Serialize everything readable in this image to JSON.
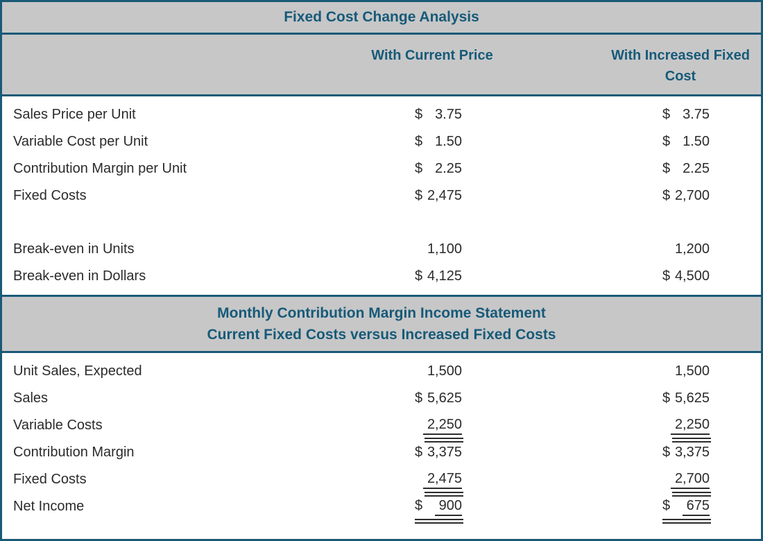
{
  "colors": {
    "accent_teal": "#175a78",
    "band_gray": "#c7c7c8",
    "body_text": "#2b2b2b",
    "background": "#ffffff"
  },
  "title": "Fixed Cost Change Analysis",
  "columns": {
    "col1": "With Current Price",
    "col2": "With Increased Fixed Cost"
  },
  "analysis": {
    "rows": [
      {
        "label": "Sales Price per Unit",
        "c1": {
          "cur": "$",
          "amt": "3.75"
        },
        "c2": {
          "cur": "$",
          "amt": "3.75"
        }
      },
      {
        "label": "Variable Cost per Unit",
        "c1": {
          "cur": "$",
          "amt": "1.50"
        },
        "c2": {
          "cur": "$",
          "amt": "1.50"
        }
      },
      {
        "label": "Contribution Margin per Unit",
        "c1": {
          "cur": "$",
          "amt": "2.25"
        },
        "c2": {
          "cur": "$",
          "amt": "2.25"
        }
      },
      {
        "label": "Fixed Costs",
        "c1": {
          "cur": "$",
          "amt": "2,475"
        },
        "c2": {
          "cur": "$",
          "amt": "2,700"
        }
      },
      {
        "label": "Break-even in Units",
        "c1": {
          "cur": "",
          "amt": "1,100"
        },
        "c2": {
          "cur": "",
          "amt": "1,200"
        }
      },
      {
        "label": "Break-even in Dollars",
        "c1": {
          "cur": "$",
          "amt": "4,125"
        },
        "c2": {
          "cur": "$",
          "amt": "4,500"
        }
      }
    ]
  },
  "statement": {
    "title_line1": "Monthly Contribution Margin Income Statement",
    "title_line2": "Current Fixed Costs versus Increased Fixed Costs",
    "rows": [
      {
        "label": "Unit Sales, Expected",
        "c1": {
          "cur": "",
          "amt": "1,500"
        },
        "c2": {
          "cur": "",
          "amt": "1,500"
        }
      },
      {
        "label": "Sales",
        "c1": {
          "cur": "$",
          "amt": "5,625"
        },
        "c2": {
          "cur": "$",
          "amt": "5,625"
        }
      },
      {
        "label": "Variable Costs",
        "c1": {
          "cur": "",
          "amt": "2,250"
        },
        "c2": {
          "cur": "",
          "amt": "2,250"
        }
      },
      {
        "label": "Contribution Margin",
        "c1": {
          "cur": "$",
          "amt": "3,375"
        },
        "c2": {
          "cur": "$",
          "amt": "3,375"
        }
      },
      {
        "label": "Fixed Costs",
        "c1": {
          "cur": "",
          "amt": "2,475"
        },
        "c2": {
          "cur": "",
          "amt": "2,700"
        }
      },
      {
        "label": "Net Income",
        "c1": {
          "cur": "$",
          "amt": "900"
        },
        "c2": {
          "cur": "$",
          "amt": "675"
        }
      }
    ]
  },
  "chart_data": {
    "type": "table",
    "title": "Fixed Cost Change Analysis",
    "columns": [
      "",
      "With Current Price",
      "With Increased Fixed Cost"
    ],
    "sections": [
      {
        "rows": [
          [
            "Sales Price per Unit",
            "$3.75",
            "$3.75"
          ],
          [
            "Variable Cost per Unit",
            "$1.50",
            "$1.50"
          ],
          [
            "Contribution Margin per Unit",
            "$2.25",
            "$2.25"
          ],
          [
            "Fixed Costs",
            "$2,475",
            "$2,700"
          ],
          [
            "Break-even in Units",
            "1,100",
            "1,200"
          ],
          [
            "Break-even in Dollars",
            "$4,125",
            "$4,500"
          ]
        ]
      },
      {
        "section_title": "Monthly Contribution Margin Income Statement — Current Fixed Costs versus Increased Fixed Costs",
        "rows": [
          [
            "Unit Sales, Expected",
            "1,500",
            "1,500"
          ],
          [
            "Sales",
            "$5,625",
            "$5,625"
          ],
          [
            "Variable Costs",
            "2,250",
            "2,250"
          ],
          [
            "Contribution Margin",
            "$3,375",
            "$3,375"
          ],
          [
            "Fixed Costs",
            "2,475",
            "2,700"
          ],
          [
            "Net Income",
            "$900",
            "$675"
          ]
        ],
        "underline_rows": [
          "Variable Costs",
          "Fixed Costs",
          "Net Income"
        ]
      }
    ]
  }
}
